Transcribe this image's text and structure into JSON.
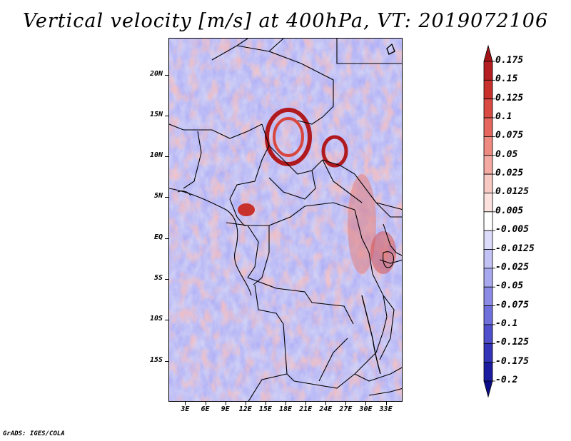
{
  "title": "Vertical velocity [m/s] at 400hPa, VT: 2019072106",
  "credit": "GrADS: IGES/COLA",
  "map": {
    "lat_labels": [
      "20N",
      "15N",
      "10N",
      "5N",
      "EQ",
      "5S",
      "10S",
      "15S"
    ],
    "lat_values": [
      20,
      15,
      10,
      5,
      0,
      -5,
      -10,
      -15
    ],
    "lon_labels": [
      "3E",
      "6E",
      "9E",
      "12E",
      "15E",
      "18E",
      "21E",
      "24E",
      "27E",
      "30E",
      "33E"
    ],
    "lon_values": [
      3,
      6,
      9,
      12,
      15,
      18,
      21,
      24,
      27,
      30,
      33
    ],
    "lat_range": [
      -20,
      24.5
    ],
    "lon_range": [
      0.5,
      35.5
    ]
  },
  "colorbar": {
    "labels": [
      "0.175",
      "0.15",
      "0.125",
      "0.1",
      "0.075",
      "0.05",
      "0.025",
      "0.0125",
      "0.005",
      "-0.005",
      "-0.0125",
      "-0.025",
      "-0.05",
      "-0.075",
      "-0.1",
      "-0.125",
      "-0.175",
      "-0.2"
    ],
    "colors": [
      "#a01418",
      "#b41e20",
      "#c8302c",
      "#d84a42",
      "#e4665c",
      "#ee8a80",
      "#f4aaa2",
      "#f8c8c2",
      "#fce2de",
      "#ffffff",
      "#dcdcfa",
      "#c2c2f4",
      "#a8a8ee",
      "#8c8ce6",
      "#7070dc",
      "#5050cc",
      "#3434b8",
      "#1c1ca0",
      "#0c0c88"
    ]
  }
}
